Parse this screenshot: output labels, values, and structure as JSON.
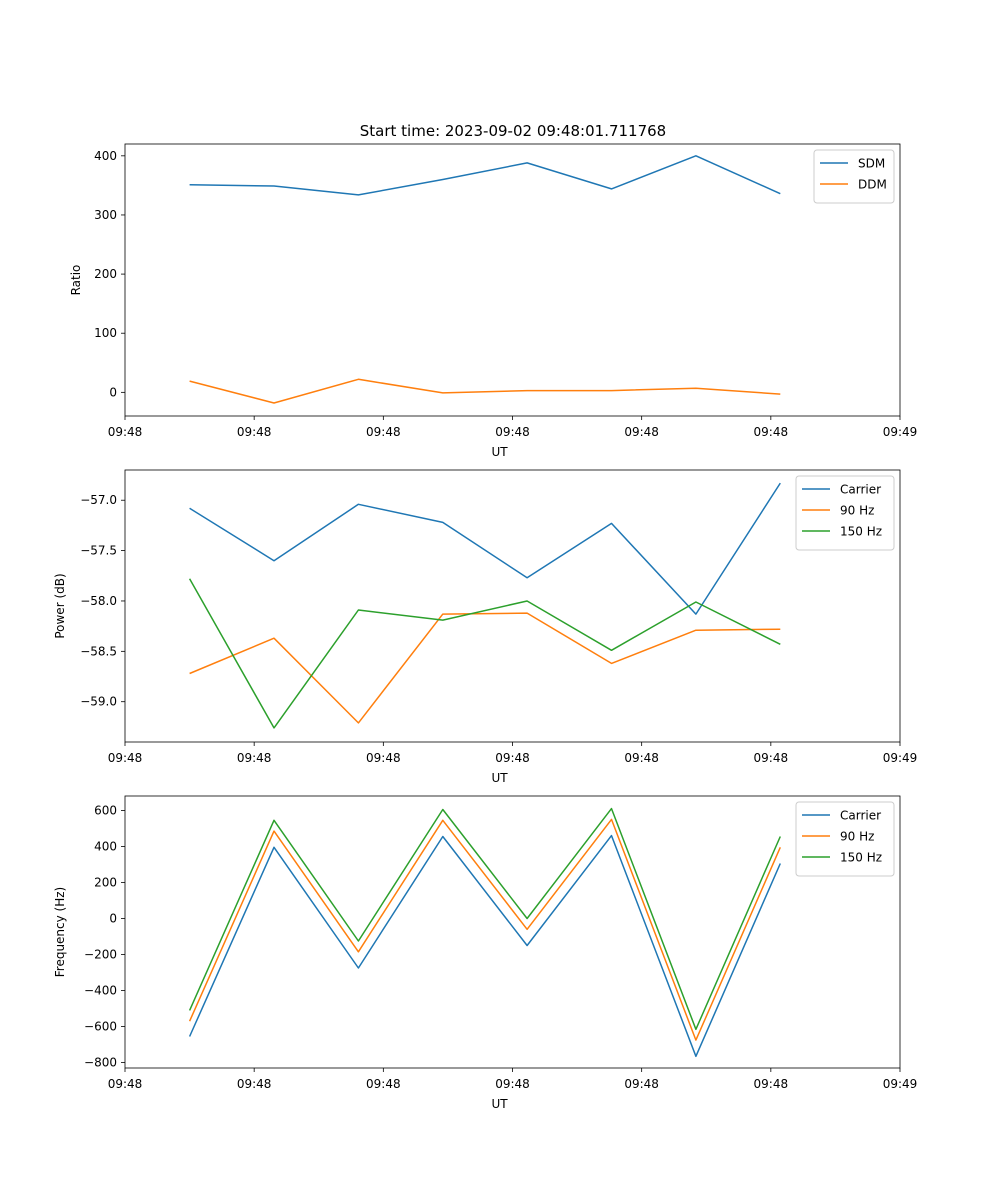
{
  "figure": {
    "title": "Start time: 2023-09-02 09:48:01.711768"
  },
  "chart_data": [
    {
      "type": "line",
      "xlabel": "UT",
      "ylabel": "Ratio",
      "xlim": [
        0,
        9
      ],
      "ylim": [
        -40,
        420
      ],
      "x_tick_values": [
        0,
        1.5,
        3,
        4.5,
        6,
        7.5,
        9
      ],
      "x_tick_labels": [
        "09:48",
        "09:48",
        "09:48",
        "09:48",
        "09:48",
        "09:48",
        "09:49"
      ],
      "y_ticks": [
        0,
        100,
        200,
        300,
        400
      ],
      "y_tick_labels": [
        "0",
        "100",
        "200",
        "300",
        "400"
      ],
      "legend_position": "top-right",
      "x": [
        0.75,
        1.73,
        2.71,
        3.69,
        4.67,
        5.65,
        6.63,
        7.61
      ],
      "series": [
        {
          "name": "SDM",
          "color": "#1f77b4",
          "values": [
            351,
            349,
            334,
            360,
            388,
            344,
            400,
            336
          ]
        },
        {
          "name": "DDM",
          "color": "#ff7f0e",
          "values": [
            19,
            -18,
            22,
            -1,
            3,
            3,
            7,
            -3
          ]
        }
      ]
    },
    {
      "type": "line",
      "xlabel": "UT",
      "ylabel": "Power (dB)",
      "xlim": [
        0,
        9
      ],
      "ylim": [
        -59.4,
        -56.7
      ],
      "x_tick_values": [
        0,
        1.5,
        3,
        4.5,
        6,
        7.5,
        9
      ],
      "x_tick_labels": [
        "09:48",
        "09:48",
        "09:48",
        "09:48",
        "09:48",
        "09:48",
        "09:49"
      ],
      "y_ticks": [
        -57.0,
        -57.5,
        -58.0,
        -58.5,
        -59.0
      ],
      "y_tick_labels": [
        "−57.0",
        "−57.5",
        "−58.0",
        "−58.5",
        "−59.0"
      ],
      "legend_position": "top-right",
      "x": [
        0.75,
        1.73,
        2.71,
        3.69,
        4.67,
        5.65,
        6.63,
        7.61
      ],
      "series": [
        {
          "name": "Carrier",
          "color": "#1f77b4",
          "values": [
            -57.08,
            -57.6,
            -57.04,
            -57.22,
            -57.77,
            -57.23,
            -58.13,
            -56.83
          ]
        },
        {
          "name": "90 Hz",
          "color": "#ff7f0e",
          "values": [
            -58.72,
            -58.37,
            -59.21,
            -58.13,
            -58.12,
            -58.62,
            -58.29,
            -58.28
          ]
        },
        {
          "name": "150 Hz",
          "color": "#2ca02c",
          "values": [
            -57.78,
            -59.26,
            -58.09,
            -58.19,
            -58.0,
            -58.49,
            -58.01,
            -58.43
          ]
        }
      ]
    },
    {
      "type": "line",
      "xlabel": "UT",
      "ylabel": "Frequency (Hz)",
      "xlim": [
        0,
        9
      ],
      "ylim": [
        -830,
        680
      ],
      "x_tick_values": [
        0,
        1.5,
        3,
        4.5,
        6,
        7.5,
        9
      ],
      "x_tick_labels": [
        "09:48",
        "09:48",
        "09:48",
        "09:48",
        "09:48",
        "09:48",
        "09:49"
      ],
      "y_ticks": [
        600,
        400,
        200,
        0,
        -200,
        -400,
        -600,
        -800
      ],
      "y_tick_labels": [
        "600",
        "400",
        "200",
        "0",
        "−200",
        "−400",
        "−600",
        "−800"
      ],
      "legend_position": "top-right",
      "x": [
        0.75,
        1.73,
        2.71,
        3.69,
        4.67,
        5.65,
        6.63,
        7.61
      ],
      "series": [
        {
          "name": "Carrier",
          "color": "#1f77b4",
          "values": [
            -655,
            395,
            -275,
            455,
            -150,
            460,
            -765,
            305
          ]
        },
        {
          "name": "90 Hz",
          "color": "#ff7f0e",
          "values": [
            -570,
            485,
            -185,
            545,
            -60,
            550,
            -675,
            395
          ]
        },
        {
          "name": "150 Hz",
          "color": "#2ca02c",
          "values": [
            -510,
            545,
            -125,
            605,
            0,
            610,
            -615,
            455
          ]
        }
      ]
    }
  ]
}
